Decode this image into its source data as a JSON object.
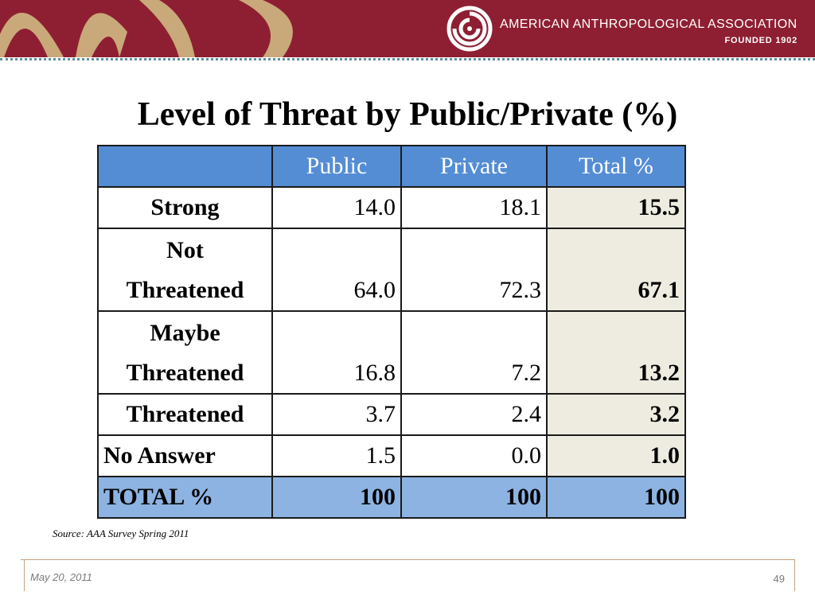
{
  "header": {
    "organization": "AMERICAN ANTHROPOLOGICAL ASSOCIATION",
    "founded": "FOUNDED 1902",
    "logo_icon": "spiral-logo-icon",
    "colors": {
      "banner": "#8e1f32",
      "deco": "#c9a97a"
    }
  },
  "slide": {
    "title": "Level of Threat by Public/Private (%)",
    "source": "Source: AAA Survey Spring 2011",
    "date": "May 20, 2011",
    "page_number": "49"
  },
  "table": {
    "columns": [
      "",
      "Public",
      "Private",
      "Total %"
    ],
    "rows": [
      {
        "label_1": "Strong",
        "label_2": "",
        "public": "14.0",
        "private": "18.1",
        "total": "15.5"
      },
      {
        "label_1": "Not",
        "label_2": "Threatened",
        "public": "64.0",
        "private": "72.3",
        "total": "67.1"
      },
      {
        "label_1": "Maybe",
        "label_2": "Threatened",
        "public": "16.8",
        "private": "7.2",
        "total": "13.2"
      },
      {
        "label_1": "Threatened",
        "label_2": "",
        "public": "3.7",
        "private": "2.4",
        "total": "3.2"
      },
      {
        "label_1": "No Answer",
        "label_2": "",
        "public": "1.5",
        "private": "0.0",
        "total": "1.0"
      }
    ],
    "total_row": {
      "label": "TOTAL %",
      "public": "100",
      "private": "100",
      "total": "100"
    },
    "colors": {
      "header": "#548dd4",
      "total_row": "#8db3e2",
      "total_col": "#eeece1"
    }
  }
}
